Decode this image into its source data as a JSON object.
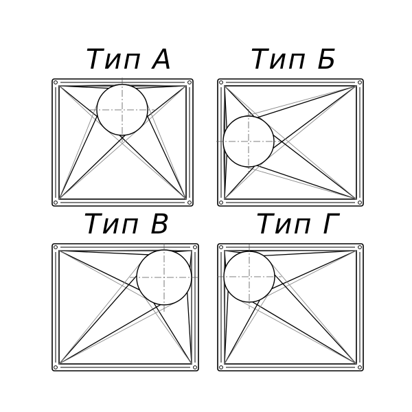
{
  "panels": [
    {
      "id": "a",
      "label": "Тип А"
    },
    {
      "id": "b",
      "label": "Тип Б"
    },
    {
      "id": "v",
      "label": "Тип В"
    },
    {
      "id": "g",
      "label": "Тип Г"
    }
  ]
}
